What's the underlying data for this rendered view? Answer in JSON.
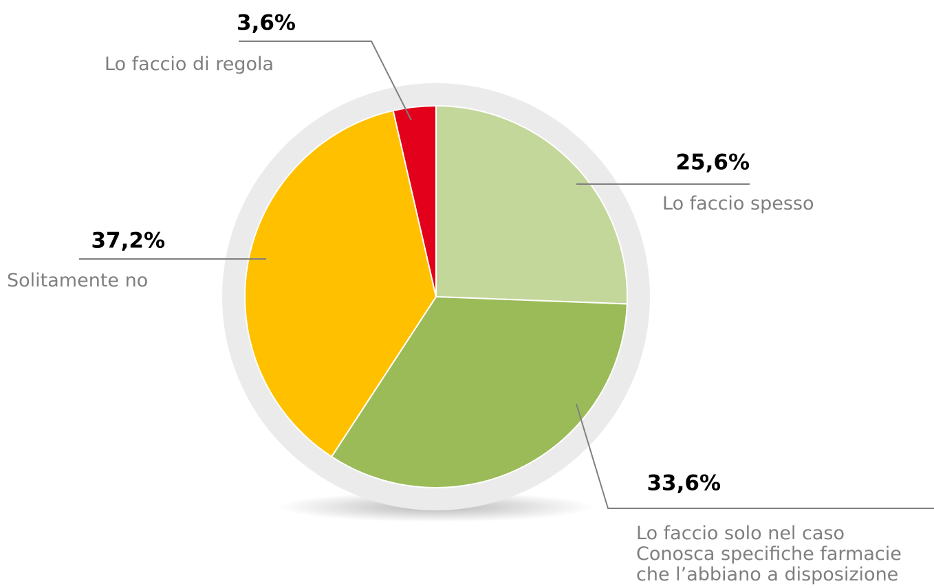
{
  "chart_data": {
    "type": "pie",
    "categories": [
      "Lo faccio spesso",
      "Lo faccio solo nel caso\nConosca specifiche farmacie\nche l’abbiano a disposizione",
      "Solitamente no",
      "Lo faccio di regola"
    ],
    "values": [
      25.6,
      33.6,
      37.2,
      3.6
    ],
    "value_labels": [
      "25,6%",
      "33,6%",
      "37,2%",
      "3,6%"
    ],
    "colors": [
      "#c4d79b",
      "#9bbb59",
      "#ffc000",
      "#e2001a"
    ]
  }
}
